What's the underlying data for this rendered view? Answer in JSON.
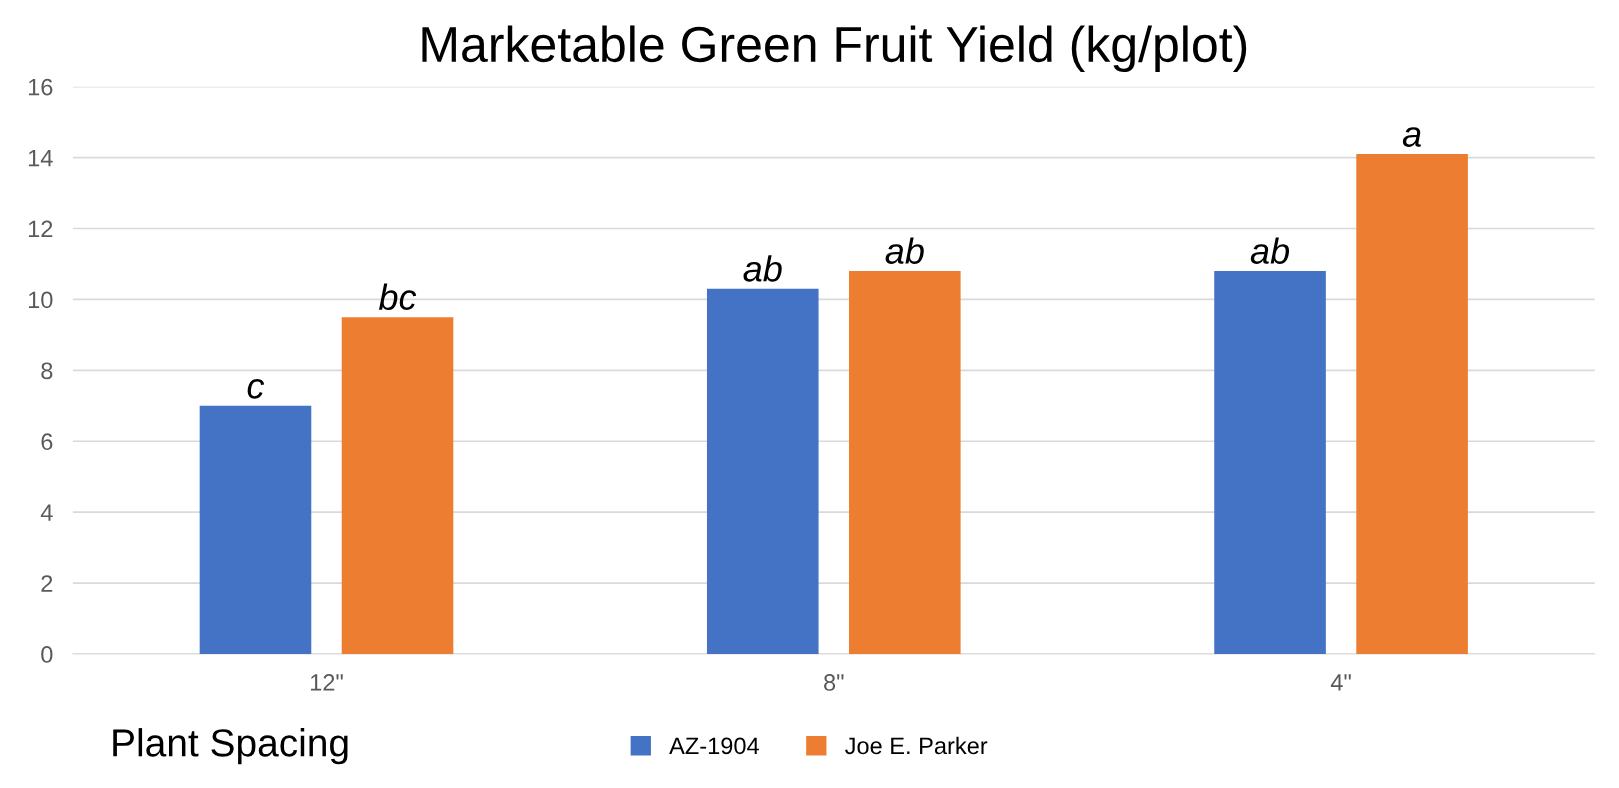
{
  "chart_data": {
    "type": "bar",
    "title": "Marketable Green Fruit Yield (kg/plot)",
    "xlabel": "Plant Spacing",
    "categories": [
      "12\"",
      "8\"",
      "4\""
    ],
    "series": [
      {
        "name": "AZ-1904",
        "color": "#4472c4",
        "values": [
          7.0,
          10.3,
          10.8
        ],
        "value_labels": [
          "c",
          "ab",
          "ab"
        ]
      },
      {
        "name": "Joe E. Parker",
        "color": "#ed7d31",
        "values": [
          9.5,
          10.8,
          14.1
        ],
        "value_labels": [
          "bc",
          "ab",
          "a"
        ]
      }
    ],
    "ylim": [
      0,
      16
    ],
    "yticks": [
      0,
      2,
      4,
      6,
      8,
      10,
      12,
      14,
      16
    ],
    "grid": "y",
    "legend": "bottom"
  }
}
